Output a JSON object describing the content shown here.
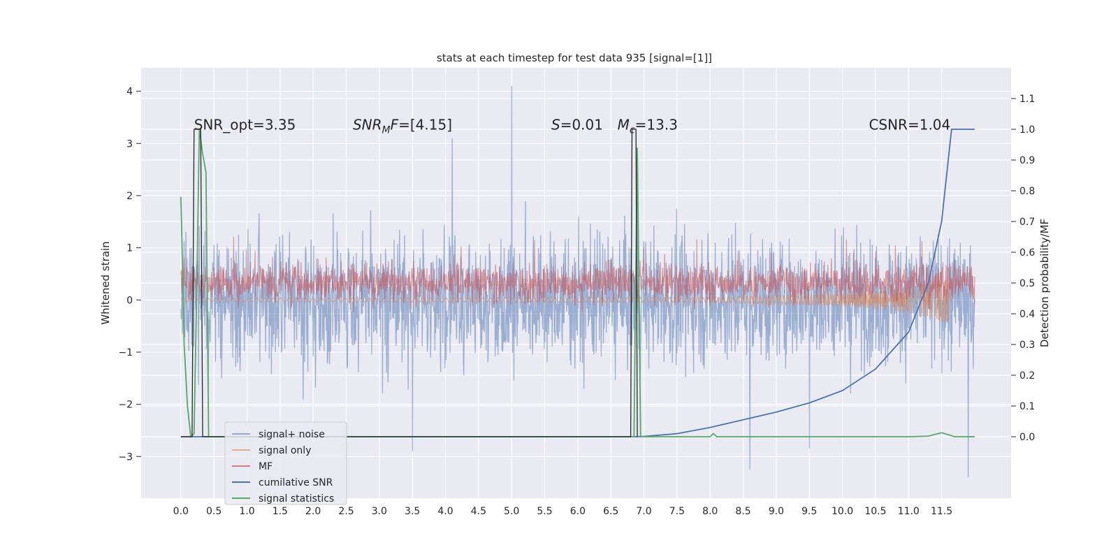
{
  "chart_data": {
    "type": "line",
    "title": "stats at each timestep for test data 935 [signal=[1]]",
    "ylabel_left": "Whitened strain",
    "ylabel_right": "Detection probability/MF",
    "xlim": [
      -0.6,
      12.55
    ],
    "ylim_left": [
      -3.8,
      4.45
    ],
    "ylim_right": [
      -0.2,
      1.2
    ],
    "x_ticks": [
      0.0,
      0.5,
      1.0,
      1.5,
      2.0,
      2.5,
      3.0,
      3.5,
      4.0,
      4.5,
      5.0,
      5.5,
      6.0,
      6.5,
      7.0,
      7.5,
      8.0,
      8.5,
      9.0,
      9.5,
      10.0,
      10.5,
      11.0,
      11.5
    ],
    "x_tick_labels": [
      "0.0",
      "0.5",
      "1.0",
      "1.5",
      "2.0",
      "2.5",
      "3.0",
      "3.5",
      "4.0",
      "4.5",
      "5.0",
      "5.5",
      "6.0",
      "6.5",
      "7.0",
      "7.5",
      "8.0",
      "8.5",
      "9.0",
      "9.5",
      "10.0",
      "10.5",
      "11.0",
      "11.5"
    ],
    "y_left_ticks": [
      -3,
      -2,
      -1,
      0,
      1,
      2,
      3,
      4
    ],
    "y_left_tick_labels": [
      "−3",
      "−2",
      "−1",
      "0",
      "1",
      "2",
      "3",
      "4"
    ],
    "y_right_ticks": [
      0.0,
      0.1,
      0.2,
      0.3,
      0.4,
      0.5,
      0.6,
      0.7,
      0.8,
      0.9,
      1.0,
      1.1
    ],
    "y_right_tick_labels": [
      "0.0",
      "0.1",
      "0.2",
      "0.3",
      "0.4",
      "0.5",
      "0.6",
      "0.7",
      "0.8",
      "0.9",
      "1.0",
      "1.1"
    ],
    "grid": true,
    "legend_position": "lower-left",
    "annotations": [
      {
        "text_parts": [
          {
            "t": "SNR_opt=3.35",
            "italic": false
          }
        ],
        "x": 0.2,
        "y_right": 0.99
      },
      {
        "text_parts": [
          {
            "t": "SNR",
            "italic": true
          },
          {
            "t": "M",
            "italic": true,
            "sub": true
          },
          {
            "t": "F",
            "italic": true
          },
          {
            "t": "=[4.15]",
            "italic": false
          }
        ],
        "x": 2.6,
        "y_right": 0.99
      },
      {
        "text_parts": [
          {
            "t": "S",
            "italic": true
          },
          {
            "t": "=0.01",
            "italic": false
          }
        ],
        "x": 5.6,
        "y_right": 0.99
      },
      {
        "text_parts": [
          {
            "t": "M",
            "italic": true
          },
          {
            "t": "c",
            "italic": true,
            "sub": true
          },
          {
            "t": "=13.3",
            "italic": false
          }
        ],
        "x": 6.6,
        "y_right": 0.99
      },
      {
        "text_parts": [
          {
            "t": "CSNR=1.04",
            "italic": false
          }
        ],
        "x": 10.4,
        "y_right": 0.99
      }
    ],
    "series": [
      {
        "name": "signal+ noise",
        "axis": "left",
        "color": "#4c72b0",
        "opacity": 0.5,
        "style": "noise",
        "x_range": [
          0.0,
          12.0
        ],
        "amplitude_std": 0.9,
        "spikes": [
          [
            5.0,
            4.1
          ],
          [
            4.1,
            3.1
          ],
          [
            6.9,
            2.9
          ],
          [
            8.6,
            -3.25
          ],
          [
            11.9,
            -3.4
          ],
          [
            3.5,
            -2.9
          ],
          [
            9.5,
            -2.85
          ]
        ]
      },
      {
        "name": "signal only",
        "axis": "left",
        "color": "#dd8452",
        "opacity": 0.6,
        "style": "chirp",
        "x_range": [
          0.0,
          11.65
        ],
        "envelope": [
          [
            0.0,
            0.03
          ],
          [
            8.0,
            0.05
          ],
          [
            10.0,
            0.12
          ],
          [
            11.0,
            0.25
          ],
          [
            11.6,
            0.45
          ],
          [
            11.65,
            0.0
          ]
        ]
      },
      {
        "name": "MF",
        "axis": "right",
        "color": "#c44e52",
        "opacity": 0.55,
        "style": "mf",
        "x_range": [
          0.0,
          12.0
        ],
        "center": 0.5,
        "spread": 0.045
      },
      {
        "name": "cumilative SNR",
        "axis": "right",
        "color": "#4c72b0",
        "opacity": 1.0,
        "style": "line",
        "points": [
          [
            0.0,
            0.0
          ],
          [
            6.85,
            0.0
          ],
          [
            7.0,
            0.001
          ],
          [
            7.5,
            0.01
          ],
          [
            8.0,
            0.03
          ],
          [
            8.5,
            0.055
          ],
          [
            9.0,
            0.08
          ],
          [
            9.5,
            0.11
          ],
          [
            10.0,
            0.15
          ],
          [
            10.5,
            0.22
          ],
          [
            11.0,
            0.34
          ],
          [
            11.3,
            0.5
          ],
          [
            11.5,
            0.7
          ],
          [
            11.6,
            0.9
          ],
          [
            11.65,
            1.0
          ],
          [
            12.0,
            1.0
          ]
        ]
      },
      {
        "name": "signal statistics",
        "axis": "right",
        "color": "#55a868",
        "opacity": 1.0,
        "style": "line",
        "points": [
          [
            0.0,
            0.78
          ],
          [
            0.01,
            0.7
          ],
          [
            0.05,
            0.3
          ],
          [
            0.1,
            0.1
          ],
          [
            0.15,
            0.0
          ],
          [
            0.2,
            0.01
          ],
          [
            0.25,
            0.6
          ],
          [
            0.28,
            1.0
          ],
          [
            0.33,
            0.92
          ],
          [
            0.38,
            0.86
          ],
          [
            0.42,
            0.0
          ],
          [
            6.85,
            0.0
          ],
          [
            6.9,
            0.94
          ],
          [
            6.95,
            0.0
          ],
          [
            8.0,
            0.0
          ],
          [
            8.05,
            0.01
          ],
          [
            8.1,
            0.0
          ],
          [
            11.0,
            0.0
          ],
          [
            11.3,
            0.002
          ],
          [
            11.5,
            0.013
          ],
          [
            11.7,
            0.0
          ],
          [
            12.0,
            0.0
          ]
        ]
      },
      {
        "name": "",
        "axis": "right",
        "color": "#262626",
        "opacity": 1.0,
        "style": "line",
        "width": 1.3,
        "points": [
          [
            0.0,
            0.0
          ],
          [
            0.17,
            0.0
          ],
          [
            0.2,
            1.0
          ],
          [
            0.3,
            1.0
          ],
          [
            0.33,
            0.0
          ],
          [
            6.8,
            0.0
          ],
          [
            6.82,
            1.0
          ],
          [
            6.88,
            1.0
          ],
          [
            6.9,
            0.0
          ]
        ]
      }
    ]
  },
  "legend": {
    "items": [
      {
        "label": "signal+ noise",
        "color": "#4c72b0",
        "opacity": 0.55
      },
      {
        "label": "signal only",
        "color": "#dd8452",
        "opacity": 0.6
      },
      {
        "label": "MF",
        "color": "#c44e52",
        "opacity": 0.7
      },
      {
        "label": "cumilative SNR",
        "color": "#4c72b0",
        "opacity": 1.0
      },
      {
        "label": "signal statistics",
        "color": "#55a868",
        "opacity": 1.0
      }
    ]
  }
}
